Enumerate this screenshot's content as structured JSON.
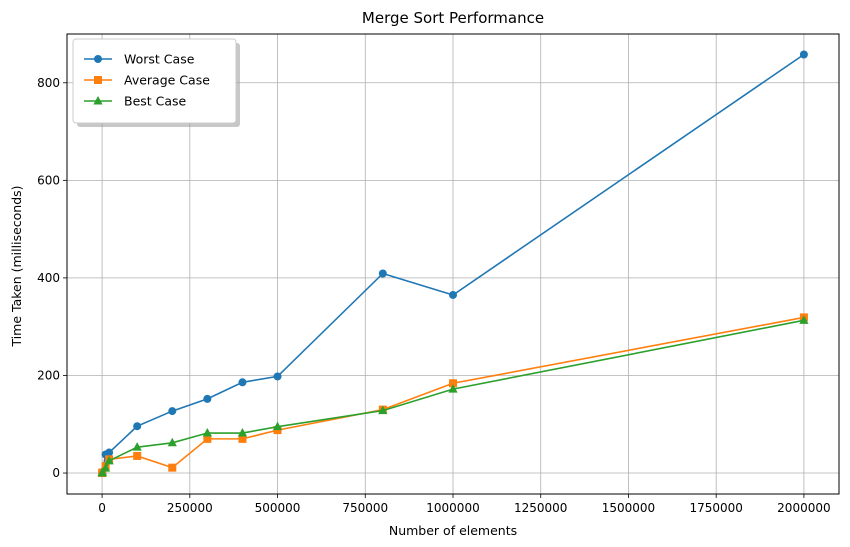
{
  "chart_data": {
    "type": "line",
    "title": "Merge Sort Performance",
    "xlabel": "Number of elements",
    "ylabel": "Time Taken (milliseconds)",
    "xlim": [
      -100000,
      2100000
    ],
    "ylim": [
      -43,
      900
    ],
    "x_ticks": [
      0,
      250000,
      500000,
      750000,
      1000000,
      1250000,
      1500000,
      1750000,
      2000000
    ],
    "x_tick_labels": [
      "0",
      "250000",
      "500000",
      "750000",
      "1000000",
      "1250000",
      "1500000",
      "1750000",
      "2000000"
    ],
    "y_ticks": [
      0,
      200,
      400,
      600,
      800
    ],
    "y_tick_labels": [
      "0",
      "200",
      "400",
      "600",
      "800"
    ],
    "grid": true,
    "legend_position": "top-left",
    "x": [
      100,
      1000,
      10000,
      20000,
      100000,
      200000,
      300000,
      400000,
      500000,
      800000,
      1000000,
      2000000
    ],
    "series": [
      {
        "name": "Worst Case",
        "color": "#1f77b4",
        "marker": "circle",
        "values": [
          0,
          2,
          38,
          42,
          96,
          127,
          152,
          186,
          198,
          409,
          365,
          858
        ]
      },
      {
        "name": "Average Case",
        "color": "#ff7f0e",
        "marker": "square",
        "values": [
          0,
          1,
          14,
          28,
          35,
          11,
          70,
          70,
          88,
          130,
          184,
          319
        ]
      },
      {
        "name": "Best Case",
        "color": "#2ca02c",
        "marker": "triangle",
        "values": [
          0,
          1,
          10,
          25,
          53,
          62,
          82,
          82,
          95,
          128,
          172,
          313
        ]
      }
    ]
  }
}
